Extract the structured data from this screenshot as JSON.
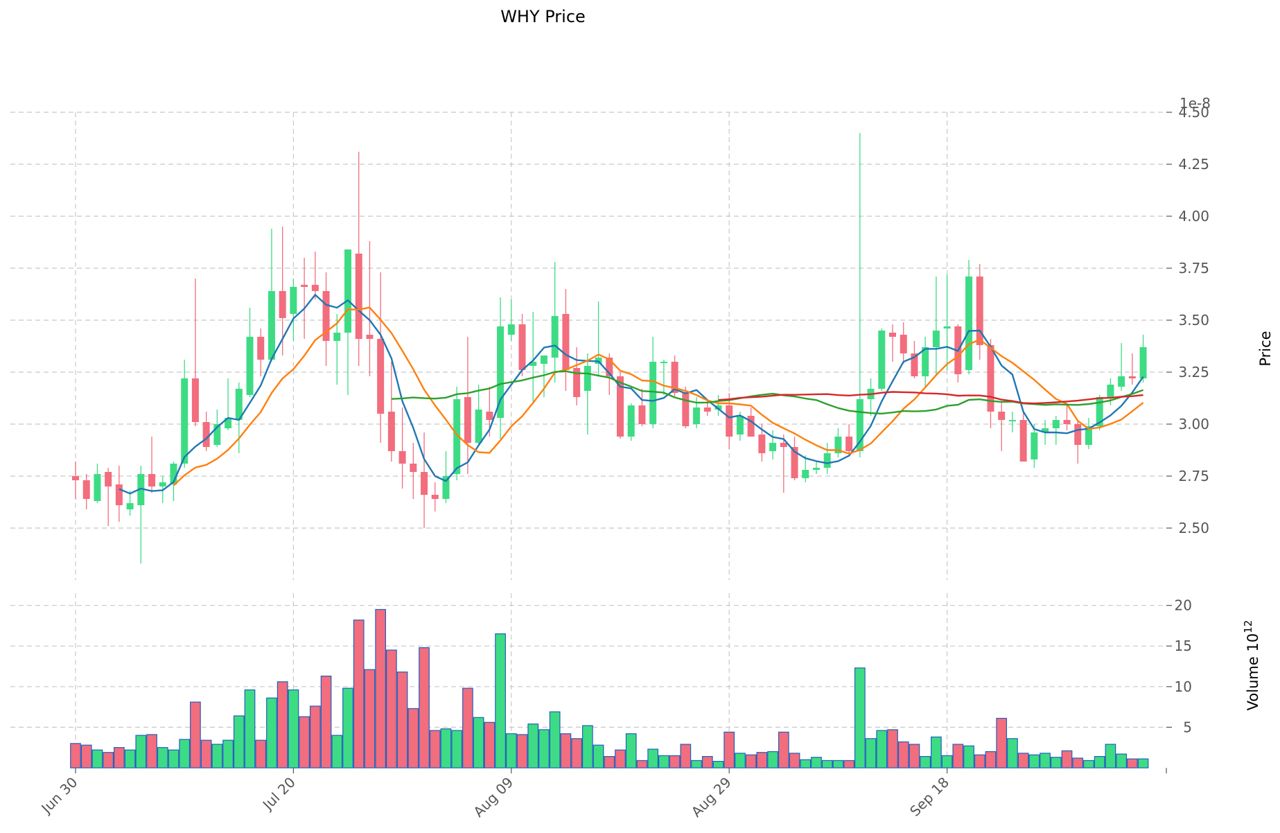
{
  "chart_data": {
    "type": "candlestick",
    "title": "WHY Price",
    "price_axis": {
      "label": "Price",
      "offset_label": "1e-8",
      "ylim": [
        2.25,
        4.5
      ],
      "ticks": [
        "2.50",
        "2.75",
        "3.00",
        "3.25",
        "3.50",
        "3.75",
        "4.00",
        "4.25",
        "4.50"
      ]
    },
    "volume_axis": {
      "label": "Volume  10",
      "label_exponent": "12",
      "ylim": [
        0,
        20
      ],
      "ticks": [
        "5",
        "10",
        "15",
        "20"
      ]
    },
    "x_ticks": [
      {
        "index": 0,
        "label": "Jun 30"
      },
      {
        "index": 20,
        "label": "Jul 20"
      },
      {
        "index": 40,
        "label": "Aug 09"
      },
      {
        "index": 60,
        "label": "Aug 29"
      },
      {
        "index": 80,
        "label": "Sep 18"
      }
    ],
    "grid": true,
    "colors": {
      "up": "#3ddc84",
      "down": "#f26d7d",
      "volume_edge": "#1f5fbf",
      "ma1": "#1f77b4",
      "ma2": "#ff7f0e",
      "ma3": "#2ca02c",
      "ma4": "#d62728"
    },
    "candles": [
      [
        2.75,
        2.82,
        2.64,
        2.73
      ],
      [
        2.73,
        2.76,
        2.59,
        2.64
      ],
      [
        2.63,
        2.81,
        2.62,
        2.76
      ],
      [
        2.77,
        2.79,
        2.51,
        2.7
      ],
      [
        2.71,
        2.8,
        2.53,
        2.61
      ],
      [
        2.59,
        2.68,
        2.56,
        2.62
      ],
      [
        2.61,
        2.8,
        2.33,
        2.76
      ],
      [
        2.76,
        2.94,
        2.67,
        2.7
      ],
      [
        2.7,
        2.75,
        2.62,
        2.72
      ],
      [
        2.71,
        2.82,
        2.63,
        2.81
      ],
      [
        2.81,
        3.31,
        2.79,
        3.22
      ],
      [
        3.22,
        3.7,
        2.99,
        3.01
      ],
      [
        3.01,
        3.06,
        2.87,
        2.89
      ],
      [
        2.9,
        3.07,
        2.89,
        3.0
      ],
      [
        2.98,
        3.22,
        2.97,
        3.03
      ],
      [
        3.02,
        3.2,
        2.86,
        3.17
      ],
      [
        3.14,
        3.56,
        3.13,
        3.42
      ],
      [
        3.42,
        3.46,
        3.23,
        3.31
      ],
      [
        3.31,
        3.94,
        3.3,
        3.64
      ],
      [
        3.64,
        3.95,
        3.33,
        3.51
      ],
      [
        3.53,
        3.7,
        3.4,
        3.66
      ],
      [
        3.67,
        3.8,
        3.41,
        3.66
      ],
      [
        3.67,
        3.83,
        3.6,
        3.64
      ],
      [
        3.64,
        3.73,
        3.28,
        3.4
      ],
      [
        3.4,
        3.53,
        3.19,
        3.44
      ],
      [
        3.44,
        3.84,
        3.14,
        3.84
      ],
      [
        3.82,
        4.31,
        3.28,
        3.41
      ],
      [
        3.43,
        3.88,
        3.23,
        3.41
      ],
      [
        3.41,
        3.73,
        2.91,
        3.05
      ],
      [
        3.06,
        3.3,
        2.82,
        2.87
      ],
      [
        2.87,
        3.08,
        2.69,
        2.81
      ],
      [
        2.81,
        2.91,
        2.64,
        2.77
      ],
      [
        2.77,
        2.96,
        2.5,
        2.66
      ],
      [
        2.66,
        2.72,
        2.58,
        2.64
      ],
      [
        2.64,
        2.87,
        2.62,
        2.75
      ],
      [
        2.76,
        3.18,
        2.73,
        3.12
      ],
      [
        3.13,
        3.42,
        2.76,
        2.91
      ],
      [
        2.91,
        3.19,
        2.9,
        3.07
      ],
      [
        3.06,
        3.18,
        2.94,
        3.02
      ],
      [
        3.03,
        3.61,
        2.93,
        3.47
      ],
      [
        3.43,
        3.6,
        3.4,
        3.48
      ],
      [
        3.48,
        3.53,
        3.23,
        3.26
      ],
      [
        3.28,
        3.54,
        3.1,
        3.3
      ],
      [
        3.29,
        3.33,
        3.13,
        3.33
      ],
      [
        3.32,
        3.78,
        3.2,
        3.52
      ],
      [
        3.53,
        3.65,
        3.16,
        3.26
      ],
      [
        3.27,
        3.37,
        3.09,
        3.13
      ],
      [
        3.16,
        3.34,
        2.95,
        3.28
      ],
      [
        3.29,
        3.59,
        3.23,
        3.32
      ],
      [
        3.32,
        3.34,
        3.14,
        3.23
      ],
      [
        3.23,
        3.25,
        2.93,
        2.94
      ],
      [
        2.94,
        3.1,
        2.92,
        3.09
      ],
      [
        3.09,
        3.17,
        2.99,
        3.0
      ],
      [
        3.0,
        3.42,
        2.98,
        3.3
      ],
      [
        3.3,
        3.31,
        3.14,
        3.3
      ],
      [
        3.3,
        3.33,
        3.13,
        3.15
      ],
      [
        3.15,
        3.18,
        2.98,
        2.99
      ],
      [
        3.0,
        3.13,
        2.98,
        3.08
      ],
      [
        3.08,
        3.11,
        3.04,
        3.06
      ],
      [
        3.07,
        3.14,
        3.04,
        3.09
      ],
      [
        3.09,
        3.15,
        2.88,
        2.94
      ],
      [
        2.95,
        3.06,
        2.92,
        3.04
      ],
      [
        3.04,
        3.08,
        2.94,
        2.94
      ],
      [
        2.95,
        3.0,
        2.82,
        2.86
      ],
      [
        2.87,
        2.97,
        2.83,
        2.91
      ],
      [
        2.91,
        2.95,
        2.67,
        2.89
      ],
      [
        2.89,
        2.94,
        2.73,
        2.74
      ],
      [
        2.74,
        2.85,
        2.72,
        2.78
      ],
      [
        2.78,
        2.82,
        2.76,
        2.79
      ],
      [
        2.79,
        2.91,
        2.76,
        2.86
      ],
      [
        2.86,
        2.98,
        2.84,
        2.94
      ],
      [
        2.94,
        3.0,
        2.86,
        2.87
      ],
      [
        2.87,
        4.4,
        2.84,
        3.12
      ],
      [
        3.12,
        3.22,
        3.04,
        3.17
      ],
      [
        3.17,
        3.46,
        3.16,
        3.45
      ],
      [
        3.44,
        3.48,
        3.3,
        3.42
      ],
      [
        3.43,
        3.49,
        3.29,
        3.34
      ],
      [
        3.34,
        3.4,
        3.22,
        3.23
      ],
      [
        3.23,
        3.42,
        3.18,
        3.37
      ],
      [
        3.37,
        3.71,
        3.23,
        3.45
      ],
      [
        3.46,
        3.72,
        3.26,
        3.47
      ],
      [
        3.47,
        3.48,
        3.2,
        3.24
      ],
      [
        3.26,
        3.79,
        3.24,
        3.71
      ],
      [
        3.71,
        3.77,
        3.31,
        3.38
      ],
      [
        3.38,
        3.41,
        2.98,
        3.06
      ],
      [
        3.06,
        3.11,
        2.87,
        3.02
      ],
      [
        3.02,
        3.06,
        2.96,
        3.02
      ],
      [
        3.02,
        3.06,
        2.82,
        2.82
      ],
      [
        2.83,
        3.0,
        2.79,
        2.96
      ],
      [
        2.96,
        3.02,
        2.9,
        2.98
      ],
      [
        2.98,
        3.04,
        2.9,
        3.02
      ],
      [
        3.02,
        3.1,
        2.97,
        3.0
      ],
      [
        3.0,
        3.02,
        2.81,
        2.9
      ],
      [
        2.9,
        3.03,
        2.88,
        2.99
      ],
      [
        2.99,
        3.14,
        2.97,
        3.13
      ],
      [
        3.13,
        3.22,
        3.09,
        3.19
      ],
      [
        3.18,
        3.39,
        3.16,
        3.23
      ],
      [
        3.23,
        3.34,
        3.19,
        3.22
      ],
      [
        3.22,
        3.43,
        3.2,
        3.37
      ]
    ],
    "volume": [
      3.0,
      2.8,
      2.2,
      1.9,
      2.5,
      2.2,
      4.0,
      4.1,
      2.5,
      2.2,
      3.5,
      8.1,
      3.4,
      2.9,
      3.4,
      6.4,
      9.6,
      3.4,
      8.6,
      10.6,
      9.6,
      6.3,
      7.6,
      11.3,
      4.0,
      9.8,
      18.2,
      12.1,
      19.5,
      14.5,
      11.8,
      7.3,
      14.8,
      4.6,
      4.8,
      4.6,
      9.8,
      6.2,
      5.6,
      16.5,
      4.2,
      4.1,
      5.4,
      4.7,
      6.9,
      4.2,
      3.6,
      5.2,
      2.8,
      1.4,
      2.2,
      4.2,
      0.9,
      2.3,
      1.5,
      1.5,
      2.9,
      0.9,
      1.4,
      0.8,
      4.4,
      1.8,
      1.6,
      1.9,
      2.0,
      4.4,
      1.8,
      1.0,
      1.3,
      0.9,
      0.9,
      0.9,
      12.3,
      3.6,
      4.6,
      4.7,
      3.2,
      2.9,
      1.4,
      3.8,
      1.5,
      2.9,
      2.7,
      1.6,
      2.0,
      6.1,
      3.6,
      1.8,
      1.6,
      1.8,
      1.3,
      2.1,
      1.2,
      0.9,
      1.4,
      2.9,
      1.7,
      1.1,
      1.1
    ],
    "moving_averages": [
      {
        "color": "#1f77b4",
        "window": 5
      },
      {
        "color": "#ff7f0e",
        "window": 10
      },
      {
        "color": "#2ca02c",
        "window": 30
      },
      {
        "color": "#d62728",
        "window": 60
      }
    ]
  }
}
